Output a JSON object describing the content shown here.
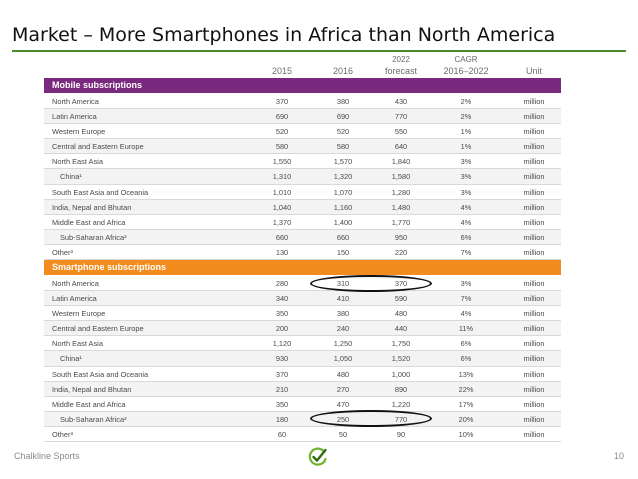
{
  "slide": {
    "title": "Market – More Smartphones in Africa than North America",
    "footer_left": "Chalkline Sports",
    "page_number": "10"
  },
  "table": {
    "headers": {
      "y2015": "2015",
      "y2016": "2016",
      "y2022_line1": "2022",
      "y2022_line2": "forecast",
      "cagr_line1": "CAGR",
      "cagr_line2": "2016–2022",
      "unit": "Unit"
    },
    "mobile_title": "Mobile subscriptions",
    "smart_title": "Smartphone subscriptions",
    "mobile_rows": [
      {
        "region": "North America",
        "v2015": "370",
        "v2016": "380",
        "v2022": "430",
        "cagr": "2%",
        "unit": "million"
      },
      {
        "region": "Latin America",
        "v2015": "690",
        "v2016": "690",
        "v2022": "770",
        "cagr": "2%",
        "unit": "million"
      },
      {
        "region": "Western Europe",
        "v2015": "520",
        "v2016": "520",
        "v2022": "550",
        "cagr": "1%",
        "unit": "million"
      },
      {
        "region": "Central and Eastern Europe",
        "v2015": "580",
        "v2016": "580",
        "v2022": "640",
        "cagr": "1%",
        "unit": "million"
      },
      {
        "region": "North East Asia",
        "v2015": "1,550",
        "v2016": "1,570",
        "v2022": "1,840",
        "cagr": "3%",
        "unit": "million"
      },
      {
        "region": "China¹",
        "v2015": "1,310",
        "v2016": "1,320",
        "v2022": "1,580",
        "cagr": "3%",
        "unit": "million"
      },
      {
        "region": "South East Asia and Oceania",
        "v2015": "1,010",
        "v2016": "1,070",
        "v2022": "1,280",
        "cagr": "3%",
        "unit": "million"
      },
      {
        "region": "India, Nepal and Bhutan",
        "v2015": "1,040",
        "v2016": "1,160",
        "v2022": "1,480",
        "cagr": "4%",
        "unit": "million"
      },
      {
        "region": "Middle East and Africa",
        "v2015": "1,370",
        "v2016": "1,400",
        "v2022": "1,770",
        "cagr": "4%",
        "unit": "million"
      },
      {
        "region": "Sub-Saharan Africa²",
        "v2015": "660",
        "v2016": "660",
        "v2022": "950",
        "cagr": "6%",
        "unit": "million"
      },
      {
        "region": "Other³",
        "v2015": "130",
        "v2016": "150",
        "v2022": "220",
        "cagr": "7%",
        "unit": "million"
      }
    ],
    "smart_rows": [
      {
        "region": "North America",
        "v2015": "280",
        "v2016": "310",
        "v2022": "370",
        "cagr": "3%",
        "unit": "million"
      },
      {
        "region": "Latin America",
        "v2015": "340",
        "v2016": "410",
        "v2022": "590",
        "cagr": "7%",
        "unit": "million"
      },
      {
        "region": "Western Europe",
        "v2015": "350",
        "v2016": "380",
        "v2022": "480",
        "cagr": "4%",
        "unit": "million"
      },
      {
        "region": "Central and Eastern Europe",
        "v2015": "200",
        "v2016": "240",
        "v2022": "440",
        "cagr": "11%",
        "unit": "million"
      },
      {
        "region": "North East Asia",
        "v2015": "1,120",
        "v2016": "1,250",
        "v2022": "1,750",
        "cagr": "6%",
        "unit": "million"
      },
      {
        "region": "China¹",
        "v2015": "930",
        "v2016": "1,050",
        "v2022": "1,520",
        "cagr": "6%",
        "unit": "million"
      },
      {
        "region": "South East Asia and Oceania",
        "v2015": "370",
        "v2016": "480",
        "v2022": "1,000",
        "cagr": "13%",
        "unit": "million"
      },
      {
        "region": "India, Nepal and Bhutan",
        "v2015": "210",
        "v2016": "270",
        "v2022": "890",
        "cagr": "22%",
        "unit": "million"
      },
      {
        "region": "Middle East and Africa",
        "v2015": "350",
        "v2016": "470",
        "v2022": "1,220",
        "cagr": "17%",
        "unit": "million"
      },
      {
        "region": "Sub-Saharan Africa²",
        "v2015": "180",
        "v2016": "250",
        "v2022": "770",
        "cagr": "20%",
        "unit": "million"
      },
      {
        "region": "Other³",
        "v2015": "60",
        "v2016": "50",
        "v2022": "90",
        "cagr": "10%",
        "unit": "million"
      }
    ]
  },
  "colors": {
    "mobile_band": "#7a2a7e",
    "smart_band": "#f28c1e",
    "title_rule": "#4a8c2a",
    "logo_green": "#6bb32e"
  },
  "icons": {
    "logo": "checkmark-circle-icon"
  }
}
